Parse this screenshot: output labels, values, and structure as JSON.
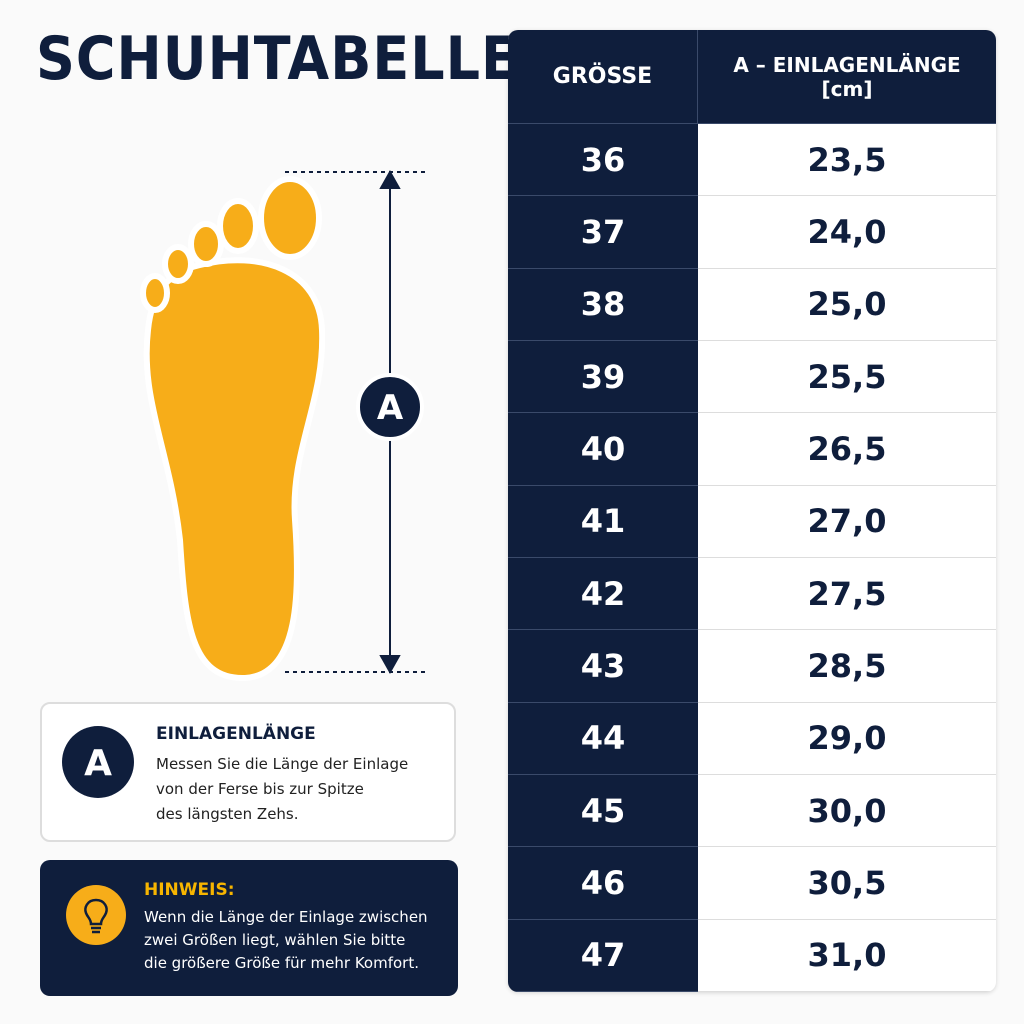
{
  "title": "SCHUHTABELLE",
  "diagram": {
    "label": "A"
  },
  "info": {
    "letter": "A",
    "heading": "EINLAGENLÄNGE",
    "lines": [
      "Messen Sie die Länge der Einlage",
      "von der Ferse bis zur Spitze",
      "des längsten Zehs."
    ]
  },
  "hint": {
    "heading": "HINWEIS:",
    "lines": [
      "Wenn die Länge der Einlage zwischen",
      "zwei Größen liegt, wählen Sie bitte",
      "die größere Größe für mehr Komfort."
    ]
  },
  "table": {
    "headers": [
      "GRÖSSE",
      "A – EINLAGENLÄNGE",
      "[cm]"
    ],
    "rows": [
      [
        "36",
        "23,5"
      ],
      [
        "37",
        "24,0"
      ],
      [
        "38",
        "25,0"
      ],
      [
        "39",
        "25,5"
      ],
      [
        "40",
        "26,5"
      ],
      [
        "41",
        "27,0"
      ],
      [
        "42",
        "27,5"
      ],
      [
        "43",
        "28,5"
      ],
      [
        "44",
        "29,0"
      ],
      [
        "45",
        "30,0"
      ],
      [
        "46",
        "30,5"
      ],
      [
        "47",
        "31,0"
      ]
    ]
  }
}
